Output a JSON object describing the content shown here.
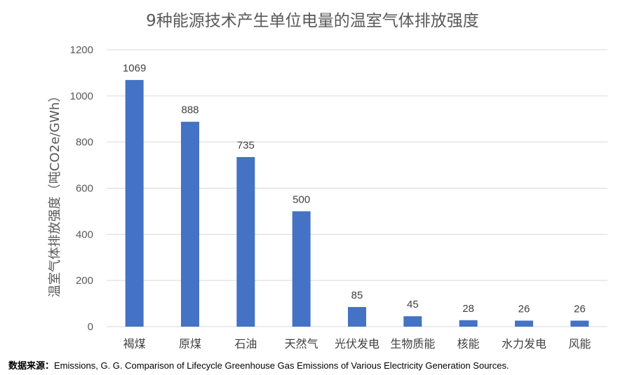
{
  "colors": {
    "bar": "#4472C4",
    "grid": "#d9d9d9",
    "tick_text": "#595959",
    "label_text": "#404040"
  },
  "chart_data": {
    "type": "bar",
    "title": "9种能源技术产生单位电量的温室气体排放强度",
    "xlabel": "",
    "ylabel": "温室气体排放强度（吨CO2e/GWh）",
    "categories": [
      "褐煤",
      "原煤",
      "石油",
      "天然气",
      "光伏发电",
      "生物质能",
      "核能",
      "水力发电",
      "风能"
    ],
    "values": [
      1069,
      888,
      735,
      500,
      85,
      45,
      28,
      26,
      26
    ],
    "data_labels": [
      "1069",
      "888",
      "735",
      "500",
      "85",
      "45",
      "28",
      "26",
      "26"
    ],
    "yticks": [
      "0",
      "200",
      "400",
      "600",
      "800",
      "1000",
      "1200"
    ],
    "ylim": [
      0,
      1200
    ],
    "grid": true,
    "legend": "none"
  },
  "source": {
    "label": "数据来源：",
    "text": "Emissions, G. G. Comparison of Lifecycle Greenhouse Gas Emissions of Various Electricity Generation Sources."
  }
}
